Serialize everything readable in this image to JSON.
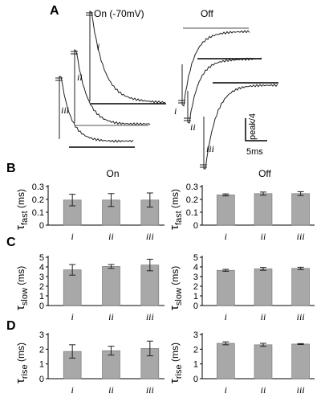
{
  "panel_letters": {
    "a": "A",
    "b": "B",
    "c": "C",
    "d": "D"
  },
  "traces": {
    "on_title": "On (-70mV)",
    "off_title": "Off",
    "trace_labels": [
      "i",
      "ii",
      "iii"
    ],
    "scale_y": "peak/4",
    "scale_x": "5ms"
  },
  "colors": {
    "bar_fill": "#a8a8a8",
    "trace": "#202020",
    "fit_line": "#000000",
    "fit_line_light": "#8c8c8c"
  },
  "chart_data": [
    {
      "type": "bar",
      "panel": "B",
      "title": "On",
      "ylabel": "τfast (ms)",
      "categories": [
        "i",
        "ii",
        "iii"
      ],
      "values": [
        0.195,
        0.195,
        0.195
      ],
      "errors": [
        0.045,
        0.05,
        0.055
      ],
      "ylim": [
        0,
        0.3
      ],
      "yticks": [
        "0",
        "0.1",
        "0.2",
        "0.3"
      ]
    },
    {
      "type": "bar",
      "panel": "B",
      "title": "Off",
      "ylabel": "τfast (ms)",
      "categories": [
        "i",
        "ii",
        "iii"
      ],
      "values": [
        0.235,
        0.245,
        0.245
      ],
      "errors": [
        0.008,
        0.012,
        0.015
      ],
      "ylim": [
        0,
        0.3
      ],
      "yticks": [
        "0",
        "0.1",
        "0.2",
        "0.3"
      ]
    },
    {
      "type": "bar",
      "panel": "C",
      "ylabel": "τslow (ms)",
      "categories": [
        "i",
        "ii",
        "iii"
      ],
      "values": [
        3.7,
        4.05,
        4.2
      ],
      "errors": [
        0.55,
        0.2,
        0.6
      ],
      "ylim": [
        0,
        5
      ],
      "yticks": [
        "0",
        "1",
        "2",
        "3",
        "4",
        "5"
      ]
    },
    {
      "type": "bar",
      "panel": "C",
      "ylabel": "τslow (ms)",
      "categories": [
        "i",
        "ii",
        "iii"
      ],
      "values": [
        3.65,
        3.8,
        3.85
      ],
      "errors": [
        0.1,
        0.15,
        0.12
      ],
      "ylim": [
        0,
        5
      ],
      "yticks": [
        "0",
        "1",
        "2",
        "3",
        "4",
        "5"
      ]
    },
    {
      "type": "bar",
      "panel": "D",
      "ylabel": "τrise (ms)",
      "categories": [
        "i",
        "ii",
        "iii"
      ],
      "values": [
        1.85,
        1.9,
        2.05
      ],
      "errors": [
        0.45,
        0.3,
        0.5
      ],
      "ylim": [
        0,
        3
      ],
      "yticks": [
        "0",
        "1",
        "2",
        "3"
      ]
    },
    {
      "type": "bar",
      "panel": "D",
      "ylabel": "τrise (ms)",
      "categories": [
        "i",
        "ii",
        "iii"
      ],
      "values": [
        2.4,
        2.3,
        2.35
      ],
      "errors": [
        0.1,
        0.1,
        0.03
      ],
      "ylim": [
        0,
        3
      ],
      "yticks": [
        "0",
        "1",
        "2",
        "3"
      ]
    }
  ]
}
